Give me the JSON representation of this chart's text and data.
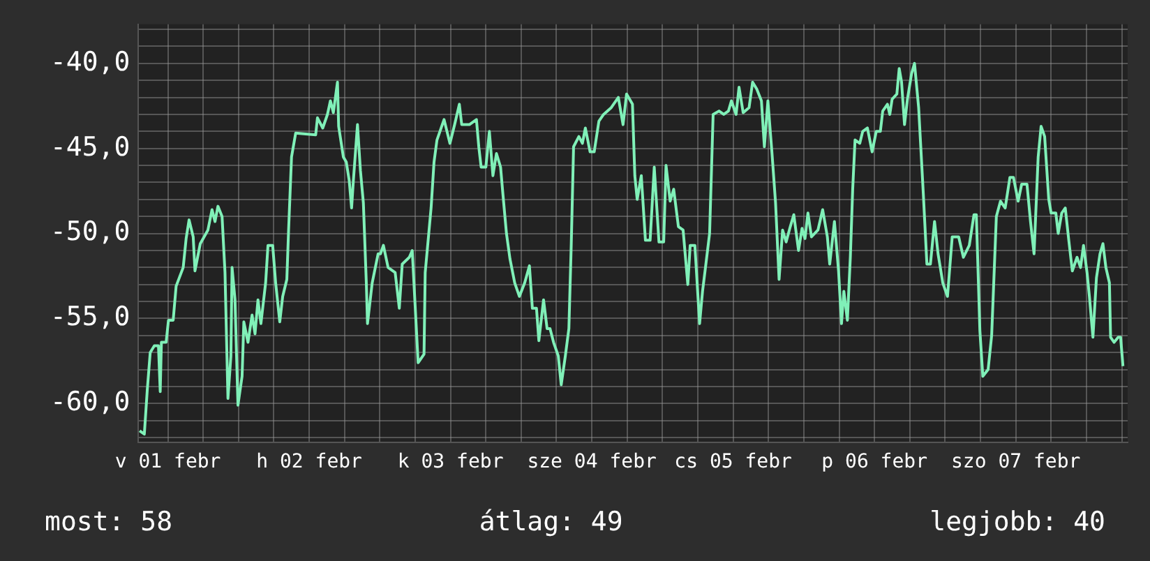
{
  "chart_data": {
    "type": "line",
    "xlim": [
      "--02-01T07:00",
      "--02-08T07:00"
    ],
    "ylim": [
      -62.3,
      -37.7
    ],
    "xticks": [
      {
        "value": "--02-01T12:00",
        "label": "v 01 febr"
      },
      {
        "value": "--02-01T18:00",
        "label": null
      },
      {
        "value": "--02-02T00:00",
        "label": null
      },
      {
        "value": "--02-02T06:00",
        "label": null
      },
      {
        "value": "--02-02T12:00",
        "label": "h 02 febr"
      },
      {
        "value": "--02-02T18:00",
        "label": null
      },
      {
        "value": "--02-03T00:00",
        "label": null
      },
      {
        "value": "--02-03T06:00",
        "label": null
      },
      {
        "value": "--02-03T12:00",
        "label": "k 03 febr"
      },
      {
        "value": "--02-03T18:00",
        "label": null
      },
      {
        "value": "--02-04T00:00",
        "label": null
      },
      {
        "value": "--02-04T06:00",
        "label": null
      },
      {
        "value": "--02-04T12:00",
        "label": "sze 04 febr"
      },
      {
        "value": "--02-04T18:00",
        "label": null
      },
      {
        "value": "--02-05T00:00",
        "label": null
      },
      {
        "value": "--02-05T06:00",
        "label": null
      },
      {
        "value": "--02-05T12:00",
        "label": "cs 05 febr"
      },
      {
        "value": "--02-05T18:00",
        "label": null
      },
      {
        "value": "--02-06T00:00",
        "label": null
      },
      {
        "value": "--02-06T06:00",
        "label": null
      },
      {
        "value": "--02-06T12:00",
        "label": "p 06 febr"
      },
      {
        "value": "--02-06T18:00",
        "label": null
      },
      {
        "value": "--02-07T00:00",
        "label": null
      },
      {
        "value": "--02-07T06:00",
        "label": null
      },
      {
        "value": "--02-07T12:00",
        "label": "szo 07 febr"
      },
      {
        "value": "--02-07T18:00",
        "label": null
      },
      {
        "value": "--02-08T00:00",
        "label": null
      },
      {
        "value": "--02-08T06:00",
        "label": null
      }
    ],
    "yticks": [
      {
        "value": -62,
        "label": null
      },
      {
        "value": -61,
        "label": null
      },
      {
        "value": -60,
        "label": "-60,0"
      },
      {
        "value": -59,
        "label": null
      },
      {
        "value": -58,
        "label": null
      },
      {
        "value": -57,
        "label": null
      },
      {
        "value": -56,
        "label": null
      },
      {
        "value": -55,
        "label": "-55,0"
      },
      {
        "value": -54,
        "label": null
      },
      {
        "value": -53,
        "label": null
      },
      {
        "value": -52,
        "label": null
      },
      {
        "value": -51,
        "label": null
      },
      {
        "value": -50,
        "label": "-50,0"
      },
      {
        "value": -49,
        "label": null
      },
      {
        "value": -48,
        "label": null
      },
      {
        "value": -47,
        "label": null
      },
      {
        "value": -46,
        "label": null
      },
      {
        "value": -45,
        "label": "-45,0"
      },
      {
        "value": -44,
        "label": null
      },
      {
        "value": -43,
        "label": null
      },
      {
        "value": -42,
        "label": null
      },
      {
        "value": -41,
        "label": null
      },
      {
        "value": -40,
        "label": "-40,0"
      },
      {
        "value": -39,
        "label": null
      },
      {
        "value": -38,
        "label": null
      }
    ],
    "grid": true,
    "legend": false,
    "marker": "none",
    "line_style": "solid",
    "annotations": [
      "most: 58",
      "átlag: 49",
      "legjobb: 40"
    ],
    "series": [
      {
        "color": "#80f0b8",
        "x": [
          "--02-01T07:12",
          "--02-01T08:00",
          "--02-01T08:30",
          "--02-01T09:00",
          "--02-01T09:42",
          "--02-01T10:24",
          "--02-01T10:42",
          "--02-01T10:54",
          "--02-01T11:42",
          "--02-01T12:06",
          "--02-01T12:54",
          "--02-01T13:24",
          "--02-01T14:36",
          "--02-01T15:06",
          "--02-01T15:36",
          "--02-01T16:18",
          "--02-01T16:36",
          "--02-01T17:30",
          "--02-01T18:48",
          "--02-01T19:30",
          "--02-01T20:00",
          "--02-01T20:30",
          "--02-01T21:12",
          "--02-01T21:42",
          "--02-01T22:12",
          "--02-01T22:42",
          "--02-01T22:54",
          "--02-01T23:24",
          "--02-01T23:54",
          "--02-02T00:36",
          "--02-02T00:54",
          "--02-02T01:36",
          "--02-02T02:18",
          "--02-02T02:48",
          "--02-02T03:18",
          "--02-02T03:48",
          "--02-02T04:36",
          "--02-02T05:00",
          "--02-02T05:48",
          "--02-02T06:18",
          "--02-02T07:00",
          "--02-02T07:30",
          "--02-02T08:12",
          "--02-02T08:30",
          "--02-02T09:00",
          "--02-02T09:42",
          "--02-02T13:06",
          "--02-02T13:24",
          "--02-02T14:18",
          "--02-02T15:06",
          "--02-02T15:36",
          "--02-02T16:06",
          "--02-02T16:48",
          "--02-02T17:00",
          "--02-02T17:48",
          "--02-02T18:18",
          "--02-02T18:48",
          "--02-02T19:12",
          "--02-02T19:30",
          "--02-02T20:12",
          "--02-02T20:42",
          "--02-02T21:12",
          "--02-02T21:42",
          "--02-02T21:54",
          "--02-02T22:42",
          "--02-02T23:42",
          "--02-03T00:06",
          "--02-03T00:36",
          "--02-03T01:24",
          "--02-03T02:36",
          "--02-03T03:18",
          "--02-03T03:48",
          "--02-03T05:00",
          "--02-03T05:30",
          "--02-03T06:00",
          "--02-03T06:30",
          "--02-03T07:30",
          "--02-03T07:42",
          "--02-03T08:42",
          "--02-03T09:12",
          "--02-03T09:42",
          "--02-03T10:54",
          "--02-03T11:24",
          "--02-03T11:54",
          "--02-03T12:42",
          "--02-03T13:30",
          "--02-03T13:54",
          "--02-03T15:12",
          "--02-03T16:24",
          "--02-03T16:48",
          "--02-03T17:12",
          "--02-03T18:00",
          "--02-03T18:36",
          "--02-03T19:12",
          "--02-03T19:48",
          "--02-03T20:30",
          "--02-03T20:54",
          "--02-03T21:30",
          "--02-03T22:06",
          "--02-03T22:54",
          "--02-03T23:42",
          "--02-04T00:36",
          "--02-04T01:24",
          "--02-04T01:54",
          "--02-04T02:36",
          "--02-04T03:00",
          "--02-04T03:48",
          "--02-04T04:24",
          "--02-04T04:54",
          "--02-04T05:30",
          "--02-04T06:18",
          "--02-04T06:48",
          "--02-04T07:30",
          "--02-04T08:06",
          "--02-04T08:30",
          "--02-04T08:54",
          "--02-04T09:48",
          "--02-04T10:24",
          "--02-04T10:54",
          "--02-04T11:42",
          "--02-04T12:24",
          "--02-04T13:12",
          "--02-04T14:00",
          "--02-04T15:18",
          "--02-04T16:30",
          "--02-04T17:18",
          "--02-04T17:54",
          "--02-04T18:54",
          "--02-04T19:18",
          "--02-04T19:42",
          "--02-04T20:24",
          "--02-04T21:06",
          "--02-04T21:54",
          "--02-04T22:36",
          "--02-04T23:24",
          "--02-05T00:12",
          "--02-05T00:36",
          "--02-05T01:18",
          "--02-05T01:54",
          "--02-05T02:42",
          "--02-05T03:30",
          "--02-05T04:18",
          "--02-05T04:42",
          "--02-05T05:30",
          "--02-05T06:18",
          "--02-05T06:48",
          "--02-05T07:18",
          "--02-05T08:00",
          "--02-05T08:36",
          "--02-05T09:36",
          "--02-05T10:24",
          "--02-05T11:12",
          "--02-05T11:42",
          "--02-05T12:30",
          "--02-05T13:00",
          "--02-05T13:42",
          "--02-05T14:42",
          "--02-05T15:18",
          "--02-05T16:00",
          "--02-05T16:48",
          "--02-05T17:18",
          "--02-05T17:54",
          "--02-05T18:36",
          "--02-05T19:12",
          "--02-05T19:48",
          "--02-05T20:24",
          "--02-05T21:00",
          "--02-05T21:42",
          "--02-05T22:18",
          "--02-05T23:06",
          "--02-05T23:42",
          "--02-06T00:12",
          "--02-06T00:42",
          "--02-06T01:18",
          "--02-06T02:24",
          "--02-06T03:12",
          "--02-06T04:00",
          "--02-06T04:24",
          "--02-06T05:12",
          "--02-06T05:54",
          "--02-06T06:24",
          "--02-06T06:48",
          "--02-06T07:24",
          "--02-06T07:54",
          "--02-06T08:18",
          "--02-06T08:42",
          "--02-06T09:30",
          "--02-06T10:00",
          "--02-06T10:48",
          "--02-06T11:36",
          "--02-06T12:18",
          "--02-06T13:00",
          "--02-06T13:24",
          "--02-06T14:12",
          "--02-06T14:36",
          "--02-06T15:00",
          "--02-06T15:48",
          "--02-06T16:12",
          "--02-06T16:36",
          "--02-06T17:06",
          "--02-06T17:36",
          "--02-06T18:18",
          "--02-06T18:48",
          "--02-06T19:30",
          "--02-06T20:18",
          "--02-06T20:54",
          "--02-06T21:30",
          "--02-06T22:12",
          "--02-06T22:48",
          "--02-06T23:36",
          "--02-07T00:24",
          "--02-07T01:12",
          "--02-07T02:18",
          "--02-07T03:06",
          "--02-07T04:06",
          "--02-07T04:54",
          "--02-07T05:18",
          "--02-07T05:54",
          "--02-07T06:24",
          "--02-07T07:18",
          "--02-07T07:54",
          "--02-07T08:42",
          "--02-07T09:24",
          "--02-07T10:12",
          "--02-07T11:00",
          "--02-07T11:36",
          "--02-07T12:24",
          "--02-07T13:00",
          "--02-07T13:54",
          "--02-07T14:30",
          "--02-07T15:06",
          "--02-07T15:48",
          "--02-07T16:18",
          "--02-07T16:54",
          "--02-07T17:36",
          "--02-07T18:00",
          "--02-07T18:48",
          "--02-07T19:12",
          "--02-07T19:48",
          "--02-07T20:24",
          "--02-07T21:00",
          "--02-07T21:36",
          "--02-07T22:24",
          "--02-07T23:00",
          "--02-07T23:30",
          "--02-08T00:06",
          "--02-08T00:30",
          "--02-08T01:06",
          "--02-08T01:42",
          "--02-08T02:18",
          "--02-08T02:48",
          "--02-08T03:18",
          "--02-08T03:54",
          "--02-08T04:06",
          "--02-08T04:42",
          "--02-08T05:24",
          "--02-08T05:48",
          "--02-08T06:12"
        ],
        "values": [
          -61.6,
          -61.8,
          -59.2,
          -57.0,
          -56.6,
          -56.6,
          -59.3,
          -56.4,
          -56.4,
          -55.1,
          -55.1,
          -53.1,
          -52.0,
          -50.3,
          -49.2,
          -50.2,
          -52.2,
          -50.6,
          -49.8,
          -48.6,
          -49.3,
          -48.4,
          -49.0,
          -52.3,
          -59.7,
          -57.2,
          -52.0,
          -53.9,
          -60.1,
          -58.4,
          -55.2,
          -56.4,
          -54.8,
          -55.9,
          -53.9,
          -55.3,
          -52.9,
          -50.7,
          -50.7,
          -52.9,
          -55.2,
          -53.7,
          -52.7,
          -49.8,
          -45.5,
          -44.1,
          -44.2,
          -43.2,
          -43.8,
          -43.0,
          -42.2,
          -42.9,
          -41.1,
          -43.7,
          -45.5,
          -45.8,
          -46.9,
          -48.5,
          -46.9,
          -43.6,
          -46.3,
          -48.2,
          -52.9,
          -55.3,
          -52.9,
          -51.2,
          -51.2,
          -50.7,
          -52.0,
          -52.3,
          -54.4,
          -51.8,
          -51.4,
          -51.0,
          -54.3,
          -57.6,
          -57.1,
          -52.3,
          -48.5,
          -45.8,
          -44.5,
          -43.3,
          -44.0,
          -44.7,
          -43.6,
          -42.4,
          -43.6,
          -43.6,
          -43.3,
          -44.9,
          -46.1,
          -46.1,
          -44.0,
          -46.6,
          -45.3,
          -46.1,
          -47.7,
          -50.0,
          -51.5,
          -52.9,
          -53.7,
          -52.9,
          -51.9,
          -54.4,
          -54.4,
          -56.3,
          -53.9,
          -55.6,
          -55.6,
          -56.4,
          -57.2,
          -58.9,
          -57.2,
          -55.6,
          -50.7,
          -44.9,
          -44.3,
          -44.7,
          -43.8,
          -45.2,
          -45.2,
          -43.4,
          -43.0,
          -42.6,
          -42.0,
          -43.6,
          -41.8,
          -42.4,
          -46.6,
          -48.0,
          -46.6,
          -50.4,
          -50.4,
          -46.1,
          -50.5,
          -50.5,
          -46.0,
          -48.1,
          -47.4,
          -49.6,
          -49.8,
          -53.0,
          -50.7,
          -50.7,
          -55.3,
          -53.4,
          -52.0,
          -50.0,
          -43.0,
          -42.8,
          -43.0,
          -42.8,
          -42.2,
          -43.0,
          -41.4,
          -42.9,
          -42.6,
          -41.1,
          -41.5,
          -42.2,
          -44.9,
          -42.2,
          -45.3,
          -48.2,
          -52.7,
          -49.8,
          -50.5,
          -49.6,
          -48.9,
          -51.0,
          -49.7,
          -50.3,
          -48.8,
          -50.2,
          -49.8,
          -48.6,
          -50.2,
          -51.8,
          -49.3,
          -52.2,
          -55.3,
          -53.4,
          -55.1,
          -51.4,
          -47.4,
          -44.5,
          -44.7,
          -44.0,
          -43.8,
          -45.2,
          -44.0,
          -44.0,
          -42.8,
          -42.4,
          -43.0,
          -42.1,
          -41.8,
          -40.3,
          -41.1,
          -43.6,
          -42.1,
          -40.6,
          -40.0,
          -42.6,
          -47.7,
          -51.8,
          -51.8,
          -49.3,
          -51.2,
          -52.9,
          -53.7,
          -50.2,
          -50.2,
          -51.4,
          -50.7,
          -48.9,
          -48.9,
          -55.7,
          -58.4,
          -58.0,
          -56.0,
          -49.0,
          -48.1,
          -48.5,
          -46.7,
          -46.7,
          -48.1,
          -47.1,
          -47.1,
          -49.3,
          -51.2,
          -45.5,
          -43.7,
          -44.3,
          -48.0,
          -48.8,
          -48.8,
          -50.0,
          -48.8,
          -48.5,
          -50.4,
          -52.2,
          -51.4,
          -52.0,
          -50.7,
          -52.3,
          -53.7,
          -56.1,
          -52.6,
          -51.2,
          -50.6,
          -52.0,
          -52.9,
          -56.1,
          -56.4,
          -56.1,
          -56.1,
          -57.8
        ]
      }
    ]
  }
}
